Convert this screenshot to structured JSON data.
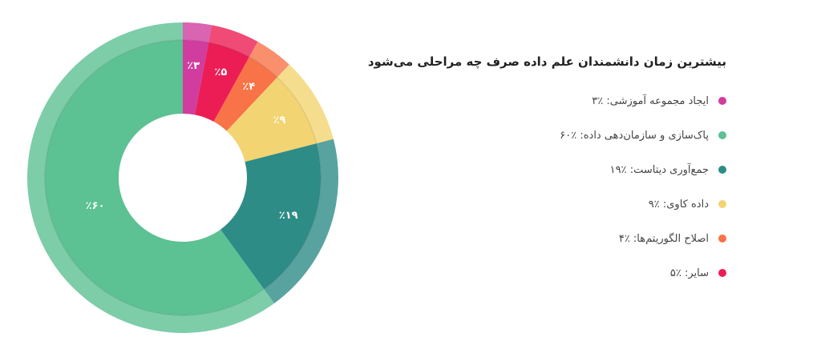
{
  "chart_data": {
    "type": "pie",
    "title": "بیشترین زمان دانشمندان علم داده صرف چه مراحلی می‌شود",
    "slices": [
      {
        "name": "ایجاد مجموعه آموزشی",
        "value": 3,
        "label": "٪۳",
        "legend": "ایجاد مجموعه آموزشی: ٪۳",
        "color": "#d03d9e"
      },
      {
        "name": "پاک‌سازی و سازمان‌دهی داده",
        "value": 60,
        "label": "٪۶۰",
        "legend": "پاک‌سازی و سازمان‌دهی داده: ٪۶۰",
        "color": "#5cc193"
      },
      {
        "name": "جمع‌آوری دیتاست",
        "value": 19,
        "label": "٪۱۹",
        "legend": "جمع‌آوری دیتاست: ٪۱۹",
        "color": "#2e8c87"
      },
      {
        "name": "داده کاوی",
        "value": 9,
        "label": "٪۹",
        "legend": "داده کاوی: ٪۹",
        "color": "#f3d472"
      },
      {
        "name": "اصلاح الگوریتم‌ها",
        "value": 4,
        "label": "٪۴",
        "legend": "اصلاح الگوریتم‌ها: ٪۴",
        "color": "#f87347"
      },
      {
        "name": "سایر",
        "value": 5,
        "label": "٪۵",
        "legend": "سایر: ٪۵",
        "color": "#ec1d54"
      }
    ],
    "draw_order": [
      0,
      5,
      4,
      3,
      2,
      1
    ],
    "legend_position": "right"
  }
}
